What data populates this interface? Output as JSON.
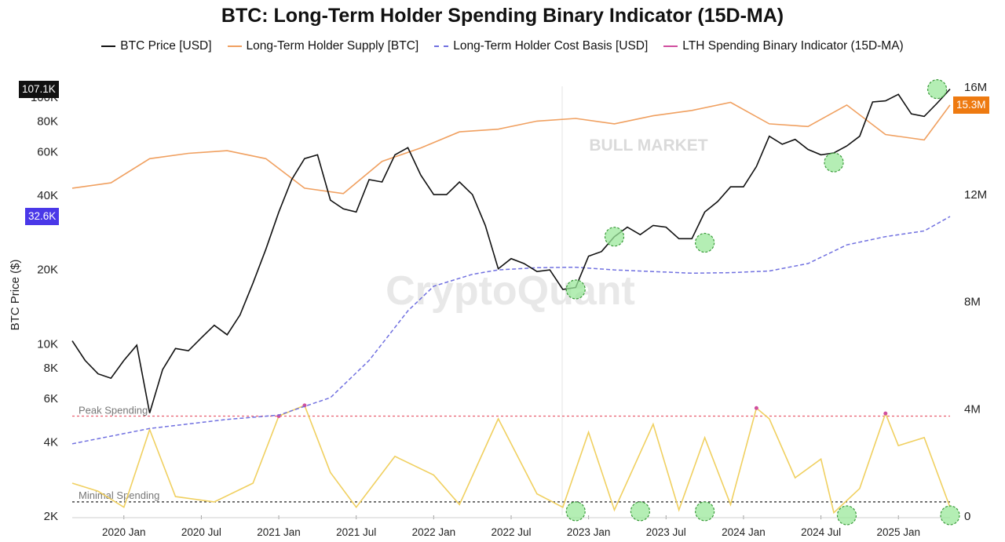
{
  "title": "BTC: Long-Term Holder Spending Binary Indicator (15D-MA)",
  "legend": [
    {
      "label": "BTC Price [USD]",
      "color": "#111111",
      "style": "solid"
    },
    {
      "label": "Long-Term Holder Supply [BTC]",
      "color": "#f0a060",
      "style": "solid"
    },
    {
      "label": "Long-Term Holder Cost Basis [USD]",
      "color": "#7070e0",
      "style": "dashed"
    },
    {
      "label": "LTH Spending Binary Indicator (15D-MA)",
      "color": "#d04e9e",
      "style": "solid"
    }
  ],
  "watermark": "CryptoQuant",
  "annotations": {
    "bull_market": "BULL MARKET",
    "peak_spending": "Peak Spending",
    "minimal_spending": "Minimal Spending"
  },
  "badges": {
    "price": "107.1K",
    "cost_basis": "32.6K",
    "supply": "15.3M"
  },
  "colors": {
    "price": "#111111",
    "supply": "#f0a060",
    "cost_basis": "#7070e0",
    "indicator": "#f0d060",
    "indicator_peak": "#d04e9e",
    "peak_line": "#e86070",
    "minimal_line": "#222222",
    "highlight_fill": "#9be89b",
    "highlight_stroke": "#3a9a3a",
    "badge_price": "#111111",
    "badge_cost": "#4a38e8",
    "badge_supply": "#ee7a10"
  },
  "chart_data": {
    "type": "line",
    "title": "BTC: Long-Term Holder Spending Binary Indicator (15D-MA)",
    "ylabel": "BTC Price ($)",
    "x_ticks": [
      "2020 Jan",
      "2020 Jul",
      "2021 Jan",
      "2021 Jul",
      "2022 Jan",
      "2022 Jul",
      "2023 Jan",
      "2023 Jul",
      "2024 Jan",
      "2024 Jul",
      "2025 Jan"
    ],
    "xlim": [
      "2019-09",
      "2025-05"
    ],
    "y_left": {
      "scale": "log",
      "ticks": [
        2000,
        4000,
        6000,
        8000,
        10000,
        20000,
        40000,
        60000,
        80000,
        100000
      ],
      "tick_labels": [
        "2K",
        "4K",
        "6K",
        "8K",
        "10K",
        "20K",
        "40K",
        "60K",
        "80K",
        "100K"
      ]
    },
    "y_right": {
      "scale": "linear",
      "ticks": [
        0,
        4000000,
        8000000,
        12000000,
        16000000
      ],
      "tick_labels": [
        "0",
        "4M",
        "8M",
        "12M",
        "16M"
      ]
    },
    "series": [
      {
        "name": "BTC Price [USD]",
        "axis": "left",
        "x": [
          "2019-09",
          "2019-10",
          "2019-11",
          "2019-12",
          "2020-01",
          "2020-02",
          "2020-03",
          "2020-04",
          "2020-05",
          "2020-06",
          "2020-07",
          "2020-08",
          "2020-09",
          "2020-10",
          "2020-11",
          "2020-12",
          "2021-01",
          "2021-02",
          "2021-03",
          "2021-04",
          "2021-05",
          "2021-06",
          "2021-07",
          "2021-08",
          "2021-09",
          "2021-10",
          "2021-11",
          "2021-12",
          "2022-01",
          "2022-02",
          "2022-03",
          "2022-04",
          "2022-05",
          "2022-06",
          "2022-07",
          "2022-08",
          "2022-09",
          "2022-10",
          "2022-11",
          "2022-12",
          "2023-01",
          "2023-02",
          "2023-03",
          "2023-04",
          "2023-05",
          "2023-06",
          "2023-07",
          "2023-08",
          "2023-09",
          "2023-10",
          "2023-11",
          "2023-12",
          "2024-01",
          "2024-02",
          "2024-03",
          "2024-04",
          "2024-05",
          "2024-06",
          "2024-07",
          "2024-08",
          "2024-09",
          "2024-10",
          "2024-11",
          "2024-12",
          "2025-01",
          "2025-02",
          "2025-03",
          "2025-04",
          "2025-05"
        ],
        "y": [
          10200,
          8500,
          7500,
          7200,
          8500,
          9800,
          5200,
          7800,
          9500,
          9300,
          10500,
          11800,
          10800,
          13000,
          17500,
          24000,
          34000,
          46000,
          56000,
          58000,
          38000,
          35000,
          34000,
          46000,
          45000,
          58000,
          62000,
          48000,
          40000,
          40000,
          45000,
          40000,
          30000,
          20000,
          22000,
          21000,
          19500,
          19800,
          16500,
          16800,
          22500,
          23500,
          27000,
          29500,
          27500,
          30000,
          29500,
          26500,
          26500,
          34000,
          37500,
          43000,
          43000,
          52000,
          69000,
          64000,
          67000,
          61000,
          58000,
          59000,
          63000,
          69000,
          95000,
          96000,
          102000,
          85000,
          83000,
          94000,
          107100
        ]
      },
      {
        "name": "Long-Term Holder Supply [BTC]",
        "axis": "right",
        "x": [
          "2019-09",
          "2019-12",
          "2020-03",
          "2020-06",
          "2020-09",
          "2020-12",
          "2021-03",
          "2021-06",
          "2021-09",
          "2021-12",
          "2022-03",
          "2022-06",
          "2022-09",
          "2022-12",
          "2023-03",
          "2023-06",
          "2023-09",
          "2023-12",
          "2024-03",
          "2024-06",
          "2024-09",
          "2024-12",
          "2025-03",
          "2025-05"
        ],
        "y": [
          12200000,
          12400000,
          13300000,
          13500000,
          13600000,
          13300000,
          12200000,
          12000000,
          13200000,
          13700000,
          14300000,
          14400000,
          14700000,
          14800000,
          14600000,
          14900000,
          15100000,
          15400000,
          14600000,
          14500000,
          15300000,
          14200000,
          14000000,
          15300000
        ]
      },
      {
        "name": "Long-Term Holder Cost Basis [USD]",
        "axis": "left",
        "x": [
          "2019-09",
          "2020-03",
          "2020-09",
          "2021-01",
          "2021-05",
          "2021-08",
          "2021-11",
          "2022-01",
          "2022-04",
          "2022-06",
          "2022-09",
          "2022-12",
          "2023-03",
          "2023-06",
          "2023-09",
          "2023-12",
          "2024-03",
          "2024-06",
          "2024-09",
          "2024-12",
          "2025-03",
          "2025-05"
        ],
        "y": [
          3900,
          4500,
          4900,
          5100,
          6000,
          8500,
          13500,
          17000,
          19000,
          19800,
          20200,
          20300,
          19800,
          19500,
          19200,
          19300,
          19600,
          21000,
          25000,
          27000,
          28500,
          32600
        ]
      },
      {
        "name": "LTH Spending Binary Indicator (15D-MA)",
        "axis": "right",
        "peak_level": 3700000,
        "minimal_level": 500000,
        "x": [
          "2019-09",
          "2019-11",
          "2020-01",
          "2020-03",
          "2020-05",
          "2020-08",
          "2020-11",
          "2021-01",
          "2021-03",
          "2021-05",
          "2021-07",
          "2021-10",
          "2022-01",
          "2022-03",
          "2022-06",
          "2022-09",
          "2022-11",
          "2023-01",
          "2023-03",
          "2023-06",
          "2023-08",
          "2023-10",
          "2023-12",
          "2024-02",
          "2024-03",
          "2024-05",
          "2024-07",
          "2024-08",
          "2024-10",
          "2024-12",
          "2025-01",
          "2025-03",
          "2025-05"
        ],
        "y": [
          1200000,
          900000,
          300000,
          3200000,
          700000,
          500000,
          1200000,
          3700000,
          4100000,
          1600000,
          300000,
          2200000,
          1500000,
          400000,
          3600000,
          800000,
          300000,
          3100000,
          200000,
          3400000,
          200000,
          2900000,
          400000,
          4000000,
          3600000,
          1400000,
          2100000,
          100000,
          1000000,
          3800000,
          2600000,
          2900000,
          300000
        ]
      }
    ],
    "highlights": [
      {
        "x": "2025-04",
        "y": 107100,
        "axis": "left"
      },
      {
        "x": "2024-08",
        "y": 54000,
        "axis": "left"
      },
      {
        "x": "2023-03",
        "y": 27000,
        "axis": "left"
      },
      {
        "x": "2023-10",
        "y": 25500,
        "axis": "left"
      },
      {
        "x": "2022-12",
        "y": 16500,
        "axis": "left"
      },
      {
        "x": "2022-12",
        "y": 150000,
        "axis": "right"
      },
      {
        "x": "2023-05",
        "y": 150000,
        "axis": "right"
      },
      {
        "x": "2023-10",
        "y": 150000,
        "axis": "right"
      },
      {
        "x": "2024-09",
        "y": 0,
        "axis": "right"
      },
      {
        "x": "2025-05",
        "y": 0,
        "axis": "right"
      }
    ],
    "grid": false
  }
}
